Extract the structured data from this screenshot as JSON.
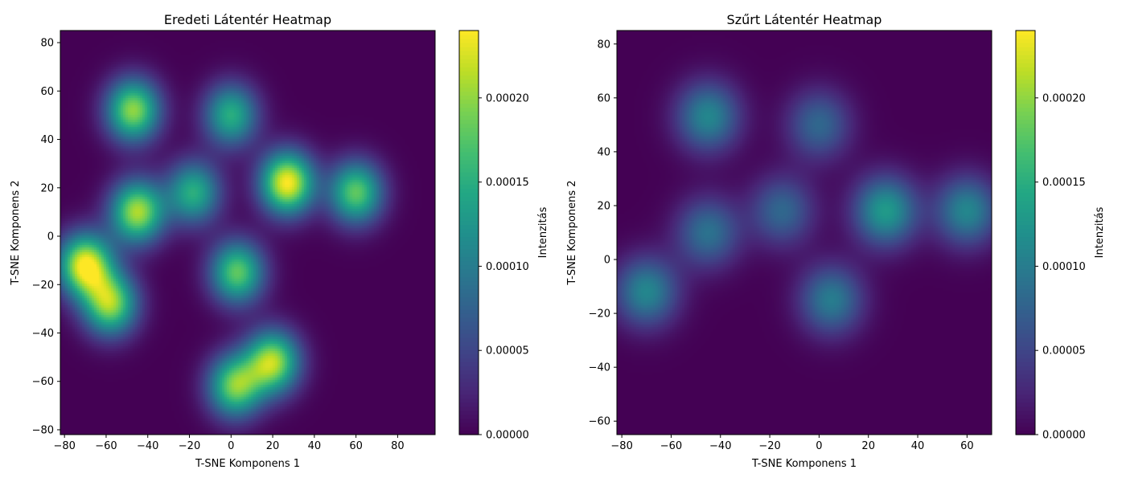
{
  "chart_data": [
    {
      "type": "heatmap",
      "title": "Eredeti Látentér Heatmap",
      "xlabel": "T-SNE Komponens 1",
      "ylabel": "T-SNE Komponens 2",
      "xlim": [
        -82,
        98
      ],
      "ylim": [
        -82,
        85
      ],
      "xticks": [
        -80,
        -60,
        -40,
        -20,
        0,
        20,
        40,
        60,
        80
      ],
      "xtick_labels": [
        "−80",
        "−60",
        "−40",
        "−20",
        "0",
        "20",
        "40",
        "60",
        "80"
      ],
      "yticks": [
        -80,
        -60,
        -40,
        -20,
        0,
        20,
        40,
        60,
        80
      ],
      "ytick_labels": [
        "−80",
        "−60",
        "−40",
        "−20",
        "0",
        "20",
        "40",
        "60",
        "80"
      ],
      "colormap": "viridis",
      "grid": false,
      "colorbar": {
        "label": "Intenzitás",
        "range": [
          0,
          0.00024
        ],
        "ticks": [
          0,
          5e-05,
          0.0001,
          0.00015,
          0.0002
        ],
        "tick_labels": [
          "0.00000",
          "0.00005",
          "0.00010",
          "0.00015",
          "0.00020"
        ]
      },
      "hotspots": [
        {
          "x": -70,
          "y": -12,
          "intensity": 0.00024
        },
        {
          "x": -58,
          "y": -28,
          "intensity": 0.0002
        },
        {
          "x": -47,
          "y": 52,
          "intensity": 0.0002
        },
        {
          "x": -45,
          "y": 10,
          "intensity": 0.00021
        },
        {
          "x": -18,
          "y": 18,
          "intensity": 0.00015
        },
        {
          "x": 0,
          "y": 50,
          "intensity": 0.00015
        },
        {
          "x": 3,
          "y": -15,
          "intensity": 0.00018
        },
        {
          "x": 27,
          "y": 22,
          "intensity": 0.00024
        },
        {
          "x": 20,
          "y": -52,
          "intensity": 0.00021
        },
        {
          "x": 2,
          "y": -62,
          "intensity": 0.00019
        },
        {
          "x": 60,
          "y": 18,
          "intensity": 0.00018
        }
      ]
    },
    {
      "type": "heatmap",
      "title": "Szűrt Látentér Heatmap",
      "xlabel": "T-SNE Komponens 1",
      "ylabel": "T-SNE Komponens 2",
      "xlim": [
        -82,
        70
      ],
      "ylim": [
        -65,
        85
      ],
      "xticks": [
        -80,
        -60,
        -40,
        -20,
        0,
        20,
        40,
        60
      ],
      "xtick_labels": [
        "−80",
        "−60",
        "−40",
        "−20",
        "0",
        "20",
        "40",
        "60"
      ],
      "yticks": [
        -60,
        -40,
        -20,
        0,
        20,
        40,
        60,
        80
      ],
      "ytick_labels": [
        "−60",
        "−40",
        "−20",
        "0",
        "20",
        "40",
        "60",
        "80"
      ],
      "colormap": "viridis",
      "grid": false,
      "colorbar": {
        "label": "Intenzitás",
        "range": [
          0,
          0.00024
        ],
        "ticks": [
          0,
          5e-05,
          0.0001,
          0.00015,
          0.0002
        ],
        "tick_labels": [
          "0.00000",
          "0.00005",
          "0.00010",
          "0.00015",
          "0.00020"
        ]
      },
      "hotspots": [
        {
          "x": 27,
          "y": 18,
          "intensity": 0.00013
        },
        {
          "x": 60,
          "y": 18,
          "intensity": 0.00011
        },
        {
          "x": -45,
          "y": 53,
          "intensity": 0.00011
        },
        {
          "x": -70,
          "y": -12,
          "intensity": 0.00011
        },
        {
          "x": 5,
          "y": -15,
          "intensity": 0.0001
        },
        {
          "x": -45,
          "y": 10,
          "intensity": 9e-05
        },
        {
          "x": -15,
          "y": 18,
          "intensity": 8e-05
        },
        {
          "x": 0,
          "y": 50,
          "intensity": 8e-05
        }
      ]
    }
  ]
}
